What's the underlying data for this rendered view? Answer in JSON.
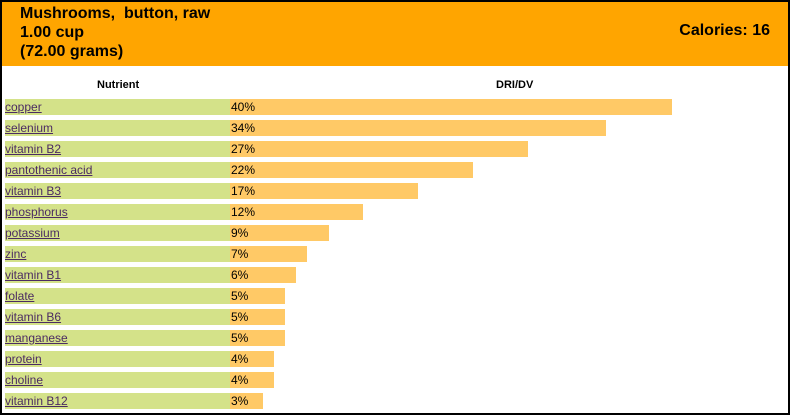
{
  "header": {
    "title_line1": "Mushrooms,  button, raw",
    "title_line2": "1.00 cup",
    "title_line3": "(72.00 grams)",
    "calories": "Calories: 16"
  },
  "columns": {
    "nutrient": "Nutrient",
    "dri": "DRI/DV"
  },
  "colors": {
    "header": "#ffa500",
    "label_bg": "#d4e289",
    "bar": "#ffc966",
    "link": "#4b2b62"
  },
  "chart_data": {
    "type": "bar",
    "orientation": "horizontal",
    "categories": [
      "copper",
      "selenium",
      "vitamin B2",
      "pantothenic acid",
      "vitamin B3",
      "phosphorus",
      "potassium",
      "zinc",
      "vitamin B1",
      "folate",
      "vitamin B6",
      "manganese",
      "protein",
      "choline",
      "vitamin B12"
    ],
    "values": [
      40,
      34,
      27,
      22,
      17,
      12,
      9,
      7,
      6,
      5,
      5,
      5,
      4,
      4,
      3
    ],
    "labels": [
      "40%",
      "34%",
      "27%",
      "22%",
      "17%",
      "12%",
      "9%",
      "7%",
      "6%",
      "5%",
      "5%",
      "5%",
      "4%",
      "4%",
      "3%"
    ],
    "xlabel": "DRI/DV",
    "ylabel": "Nutrient",
    "xlim": [
      0,
      100
    ],
    "grid": false
  }
}
